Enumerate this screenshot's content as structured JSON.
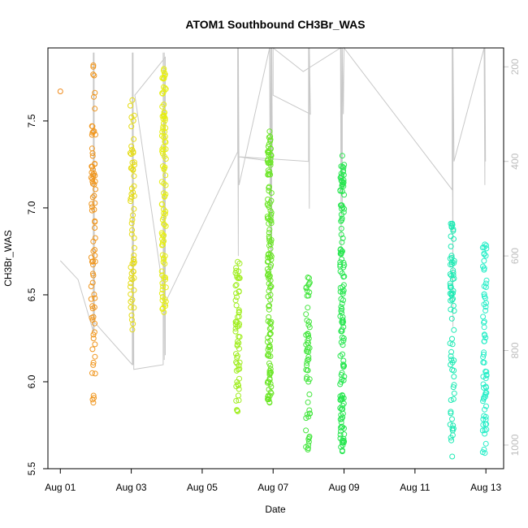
{
  "chart_data": {
    "type": "scatter",
    "title": "ATOM1 Southbound CH3Br_WAS",
    "xlabel": "Date",
    "ylabel": "CH3Br_WAS",
    "x_ticks": [
      "Aug 01",
      "Aug 03",
      "Aug 05",
      "Aug 07",
      "Aug 09",
      "Aug 11",
      "Aug 13"
    ],
    "x_tick_days": [
      1,
      3,
      5,
      7,
      9,
      11,
      13
    ],
    "xlim_days": [
      0.65,
      13.5
    ],
    "ylim": [
      5.5,
      7.92
    ],
    "y_ticks": [
      5.5,
      6.0,
      6.5,
      7.0,
      7.5
    ],
    "y_tick_labels": [
      "5.5",
      "6.0",
      "6.5",
      "7.0",
      "7.5"
    ],
    "y2_lim": [
      1050,
      160
    ],
    "y2_ticks": [
      200,
      400,
      600,
      800,
      1000
    ],
    "y2_tick_labels": [
      "200",
      "400",
      "600",
      "800",
      "1000"
    ],
    "y2_color": "#c8c8c8",
    "clusters": [
      {
        "day": 1.0,
        "ymin": 7.67,
        "ymax": 7.67,
        "count": 1,
        "color": "#f08c1e"
      },
      {
        "day": 1.93,
        "ymin": 5.88,
        "ymax": 7.82,
        "count": 80,
        "color": "#f0961e"
      },
      {
        "day": 3.03,
        "ymin": 6.3,
        "ymax": 7.62,
        "count": 60,
        "color": "#e6dc14"
      },
      {
        "day": 3.92,
        "ymin": 6.4,
        "ymax": 7.8,
        "count": 100,
        "color": "#e6ee14"
      },
      {
        "day": 6.0,
        "ymin": 5.83,
        "ymax": 6.69,
        "count": 60,
        "color": "#a0ee20"
      },
      {
        "day": 6.9,
        "ymin": 5.88,
        "ymax": 7.44,
        "count": 140,
        "color": "#6ce628"
      },
      {
        "day": 7.98,
        "ymin": 5.61,
        "ymax": 6.6,
        "count": 60,
        "color": "#46e640"
      },
      {
        "day": 8.95,
        "ymin": 5.6,
        "ymax": 7.3,
        "count": 140,
        "color": "#28e650"
      },
      {
        "day": 12.05,
        "ymin": 5.57,
        "ymax": 6.91,
        "count": 70,
        "color": "#1eeab4"
      },
      {
        "day": 12.97,
        "ymin": 5.59,
        "ymax": 6.79,
        "count": 70,
        "color": "#28eec8"
      }
    ],
    "altitude_path": [
      [
        1.0,
        610
      ],
      [
        1.5,
        650
      ],
      [
        1.93,
        760
      ],
      [
        1.93,
        170
      ],
      [
        1.95,
        760
      ],
      [
        1.95,
        170
      ],
      [
        1.96,
        740
      ],
      [
        3.03,
        830
      ],
      [
        3.03,
        170
      ],
      [
        3.05,
        830
      ],
      [
        3.05,
        170
      ],
      [
        3.07,
        840
      ],
      [
        3.9,
        830
      ],
      [
        3.9,
        170
      ],
      [
        3.93,
        820
      ],
      [
        3.93,
        170
      ],
      [
        3.96,
        810
      ],
      [
        3.96,
        180
      ],
      [
        3.1,
        260
      ],
      [
        3.95,
        700
      ],
      [
        6.0,
        380
      ],
      [
        6.0,
        160
      ],
      [
        6.02,
        600
      ],
      [
        6.02,
        160
      ],
      [
        6.04,
        450
      ],
      [
        6.9,
        160
      ],
      [
        6.93,
        700
      ],
      [
        6.93,
        160
      ],
      [
        6.96,
        600
      ],
      [
        6.96,
        160
      ],
      [
        6.98,
        400
      ],
      [
        6.0,
        390
      ],
      [
        8.0,
        400
      ],
      [
        8.0,
        160
      ],
      [
        8.02,
        500
      ],
      [
        8.02,
        160
      ],
      [
        8.05,
        300
      ],
      [
        7.0,
        260
      ],
      [
        7.0,
        160
      ],
      [
        7.85,
        210
      ],
      [
        8.9,
        160
      ],
      [
        8.92,
        600
      ],
      [
        8.92,
        160
      ],
      [
        8.95,
        500
      ],
      [
        8.95,
        160
      ],
      [
        8.98,
        300
      ],
      [
        9.0,
        160
      ],
      [
        12.05,
        460
      ],
      [
        12.05,
        160
      ],
      [
        12.07,
        750
      ],
      [
        12.07,
        160
      ],
      [
        12.1,
        400
      ],
      [
        12.95,
        160
      ],
      [
        12.97,
        450
      ],
      [
        12.97,
        160
      ],
      [
        12.99,
        400
      ]
    ]
  }
}
